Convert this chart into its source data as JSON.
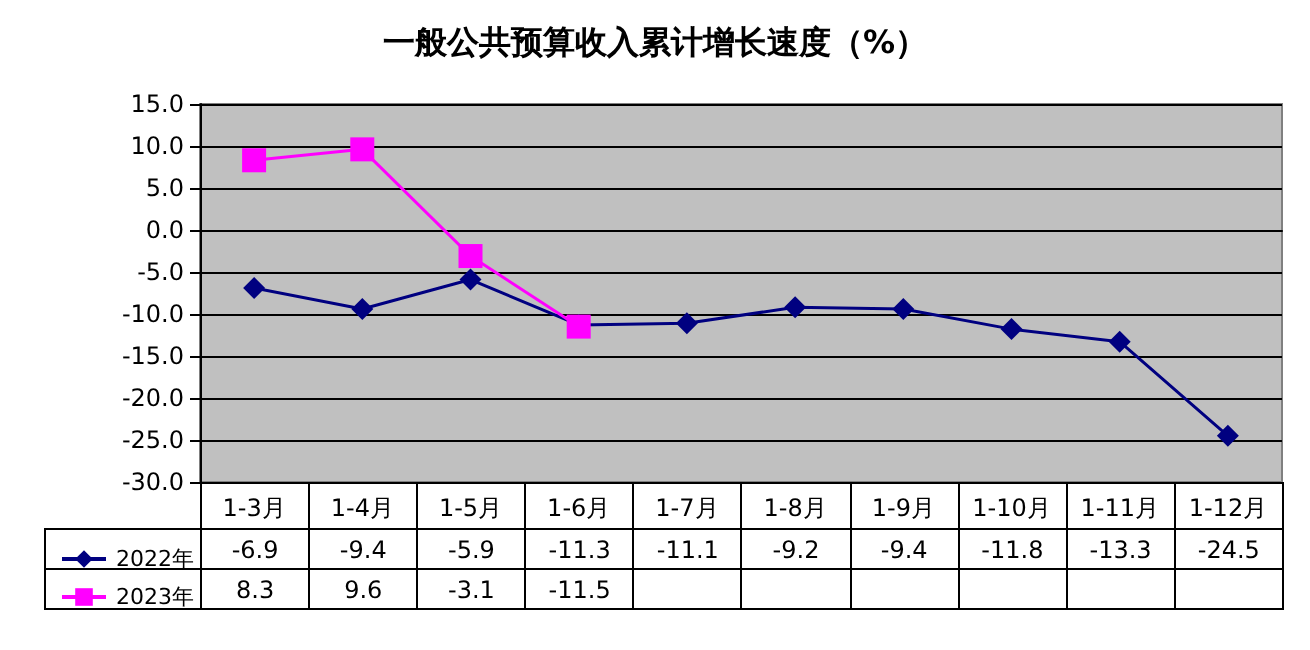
{
  "chart_data": {
    "type": "line",
    "title": "一般公共预算收入累计增长速度（%）",
    "categories": [
      "1-3月",
      "1-4月",
      "1-5月",
      "1-6月",
      "1-7月",
      "1-8月",
      "1-9月",
      "1-10月",
      "1-11月",
      "1-12月"
    ],
    "series": [
      {
        "name": "2022年",
        "color": "#000080",
        "marker": "diamond",
        "values": [
          -6.9,
          -9.4,
          -5.9,
          -11.3,
          -11.1,
          -9.2,
          -9.4,
          -11.8,
          -13.3,
          -24.5
        ]
      },
      {
        "name": "2023年",
        "color": "#ff00ff",
        "marker": "square",
        "values": [
          8.3,
          9.6,
          -3.1,
          -11.5,
          null,
          null,
          null,
          null,
          null,
          null
        ]
      }
    ],
    "ylim": [
      -30,
      15
    ],
    "yticks": [
      {
        "value": -30,
        "label": "-30.0"
      },
      {
        "value": -25,
        "label": "-25.0"
      },
      {
        "value": -20,
        "label": "-20.0"
      },
      {
        "value": -15,
        "label": "-15.0"
      },
      {
        "value": -10,
        "label": "-10.0"
      },
      {
        "value": -5,
        "label": "-5.0"
      },
      {
        "value": 0,
        "label": "0.0"
      },
      {
        "value": 5,
        "label": "5.0"
      },
      {
        "value": 10,
        "label": "10.0"
      },
      {
        "value": 15,
        "label": "15.0"
      }
    ],
    "grid": "y",
    "legend": "bottom",
    "data_labels": true,
    "line_style": "solid"
  }
}
